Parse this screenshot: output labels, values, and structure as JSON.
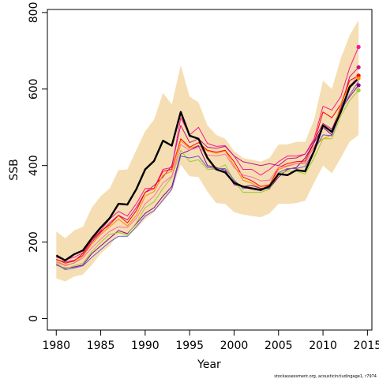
{
  "chart_data": {
    "type": "line",
    "title": "",
    "xlabel": "Year",
    "ylabel": "SSB",
    "xlim": [
      1979,
      2015.5
    ],
    "ylim": [
      -30,
      808
    ],
    "x_ticks": [
      "1980",
      "1985",
      "1990",
      "1995",
      "2000",
      "2005",
      "2010",
      "2015"
    ],
    "y_ticks": [
      "0",
      "200",
      "400",
      "600",
      "800"
    ],
    "footnote": "stockassessment.org, acousticincludingage1, r7974",
    "band_color": "#f5deb3",
    "main_color": "#000000",
    "x": [
      1980,
      1981,
      1982,
      1983,
      1984,
      1985,
      1986,
      1987,
      1988,
      1989,
      1990,
      1991,
      1992,
      1993,
      1994,
      1995,
      1996,
      1997,
      1998,
      1999,
      2000,
      2001,
      2002,
      2003,
      2004,
      2005,
      2006,
      2007,
      2008,
      2009,
      2010,
      2011,
      2012,
      2013,
      2014
    ],
    "confidence_band": {
      "upper": [
        228,
        210,
        230,
        240,
        290,
        320,
        340,
        388,
        390,
        440,
        490,
        520,
        590,
        560,
        662,
        580,
        565,
        505,
        480,
        470,
        438,
        420,
        415,
        410,
        420,
        455,
        455,
        462,
        462,
        520,
        622,
        600,
        680,
        740,
        780
      ],
      "lower": [
        105,
        97,
        110,
        115,
        140,
        170,
        190,
        220,
        215,
        235,
        260,
        278,
        305,
        335,
        402,
        372,
        370,
        332,
        302,
        300,
        278,
        272,
        268,
        265,
        275,
        300,
        300,
        302,
        308,
        355,
        400,
        380,
        420,
        462,
        480
      ]
    },
    "series": [
      {
        "color": "#000000",
        "width": 2.4,
        "endpoint": false,
        "values": [
          165,
          152,
          168,
          178,
          210,
          238,
          262,
          300,
          298,
          338,
          390,
          412,
          465,
          452,
          540,
          478,
          470,
          420,
          390,
          382,
          355,
          345,
          340,
          336,
          346,
          378,
          375,
          388,
          385,
          438,
          505,
          488,
          540,
          605,
          628
        ]
      },
      {
        "color": "#ff1493",
        "width": 1,
        "endpoint": true,
        "values": [
          160,
          154,
          160,
          172,
          205,
          230,
          260,
          280,
          268,
          300,
          340,
          340,
          390,
          395,
          525,
          480,
          500,
          458,
          450,
          452,
          425,
          390,
          390,
          375,
          390,
          410,
          425,
          425,
          430,
          470,
          555,
          545,
          580,
          655,
          710
        ]
      },
      {
        "color": "#c71585",
        "width": 1,
        "endpoint": true,
        "values": [
          154,
          148,
          152,
          165,
          200,
          225,
          250,
          270,
          258,
          290,
          330,
          348,
          370,
          400,
          505,
          460,
          470,
          448,
          445,
          450,
          425,
          410,
          405,
          400,
          405,
          400,
          418,
          420,
          430,
          465,
          510,
          495,
          550,
          632,
          657
        ]
      },
      {
        "color": "#ff0000",
        "width": 1,
        "endpoint": true,
        "values": [
          155,
          145,
          150,
          170,
          205,
          228,
          245,
          270,
          250,
          282,
          330,
          340,
          385,
          390,
          470,
          448,
          460,
          440,
          435,
          440,
          410,
          370,
          360,
          345,
          350,
          395,
          405,
          410,
          412,
          460,
          540,
          525,
          560,
          622,
          635
        ]
      },
      {
        "color": "#ff8c00",
        "width": 1,
        "endpoint": true,
        "values": [
          150,
          140,
          145,
          163,
          195,
          220,
          240,
          260,
          242,
          270,
          320,
          332,
          375,
          385,
          465,
          445,
          452,
          438,
          432,
          438,
          400,
          362,
          354,
          340,
          348,
          390,
          398,
          405,
          405,
          452,
          470,
          480,
          560,
          610,
          628
        ]
      },
      {
        "color": "#8b008b",
        "width": 1,
        "endpoint": true,
        "values": [
          140,
          132,
          135,
          140,
          170,
          190,
          210,
          230,
          222,
          248,
          275,
          290,
          320,
          345,
          430,
          440,
          452,
          400,
          395,
          388,
          350,
          345,
          348,
          340,
          340,
          370,
          390,
          395,
          420,
          460,
          500,
          480,
          545,
          580,
          610
        ]
      },
      {
        "color": "#9acd32",
        "width": 1,
        "endpoint": true,
        "values": [
          145,
          130,
          138,
          145,
          175,
          200,
          220,
          225,
          220,
          250,
          290,
          305,
          340,
          370,
          440,
          410,
          415,
          390,
          390,
          402,
          360,
          330,
          330,
          330,
          338,
          380,
          385,
          385,
          378,
          420,
          470,
          470,
          530,
          570,
          597
        ]
      },
      {
        "color": "#ff69b4",
        "width": 1,
        "endpoint": false,
        "values": [
          148,
          138,
          145,
          158,
          185,
          208,
          228,
          240,
          238,
          262,
          300,
          320,
          355,
          372,
          455,
          440,
          448,
          428,
          425,
          430,
          395,
          375,
          370,
          360,
          362,
          395,
          400,
          405,
          408,
          448,
          500,
          490,
          545,
          605,
          640
        ]
      },
      {
        "color": "#6a5acd",
        "width": 1,
        "endpoint": false,
        "values": [
          142,
          128,
          132,
          138,
          160,
          180,
          200,
          215,
          215,
          240,
          268,
          282,
          310,
          338,
          425,
          420,
          425,
          395,
          392,
          392,
          362,
          340,
          342,
          338,
          342,
          382,
          392,
          392,
          398,
          440,
          480,
          478,
          540,
          585,
          620
        ]
      }
    ]
  }
}
